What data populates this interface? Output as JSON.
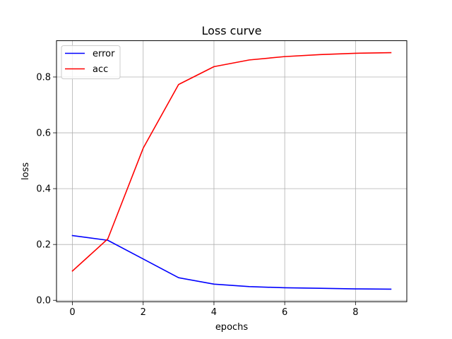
{
  "chart_data": {
    "type": "line",
    "title": "Loss curve",
    "xlabel": "epochs",
    "ylabel": "loss",
    "xlim": [
      -0.45,
      9.45
    ],
    "ylim": [
      -0.005,
      0.93
    ],
    "xticks": [
      0,
      2,
      4,
      6,
      8
    ],
    "xtick_labels": [
      "0",
      "2",
      "4",
      "6",
      "8"
    ],
    "yticks": [
      0.0,
      0.2,
      0.4,
      0.6,
      0.8
    ],
    "ytick_labels": [
      "0.0",
      "0.2",
      "0.4",
      "0.6",
      "0.8"
    ],
    "grid": true,
    "legend_position": "top-left",
    "x": [
      0,
      1,
      2,
      3,
      4,
      5,
      6,
      7,
      8,
      9
    ],
    "series": [
      {
        "name": "error",
        "color": "#0000ff",
        "values": [
          0.232,
          0.215,
          0.148,
          0.081,
          0.058,
          0.049,
          0.045,
          0.043,
          0.041,
          0.04
        ]
      },
      {
        "name": "acc",
        "color": "#ff0000",
        "values": [
          0.105,
          0.22,
          0.545,
          0.773,
          0.837,
          0.861,
          0.873,
          0.88,
          0.885,
          0.887
        ]
      }
    ]
  }
}
